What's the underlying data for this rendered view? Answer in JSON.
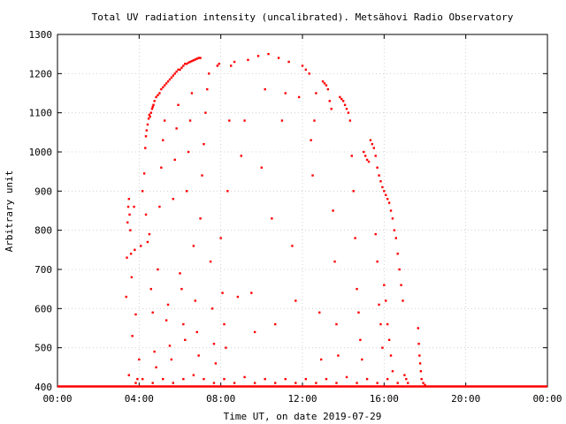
{
  "chart_data": {
    "type": "scatter",
    "title": "Total UV radiation intensity (uncalibrated). Metsähovi Radio Observatory",
    "xlabel": "Time UT, on date 2019-07-29",
    "ylabel": "Arbitrary unit",
    "xlim": [
      "00:00",
      "24:00"
    ],
    "ylim": [
      400,
      1300
    ],
    "x_ticks": [
      "00:00",
      "04:00",
      "08:00",
      "12:00",
      "16:00",
      "20:00",
      "00:00"
    ],
    "y_ticks": [
      400,
      500,
      600,
      700,
      800,
      900,
      1000,
      1100,
      1200,
      1300
    ],
    "grid": true,
    "marker_color": "#ff0000",
    "baseline": 400,
    "series": [
      {
        "points": [
          [
            "03:22",
            630
          ],
          [
            "03:24",
            730
          ],
          [
            "03:26",
            820
          ],
          [
            "03:28",
            860
          ],
          [
            "03:30",
            880
          ],
          [
            "03:32",
            840
          ],
          [
            "03:34",
            800
          ],
          [
            "03:36",
            740
          ],
          [
            "03:38",
            680
          ],
          [
            "03:40",
            530
          ],
          [
            "03:45",
            860
          ],
          [
            "03:47",
            750
          ],
          [
            "03:50",
            585
          ],
          [
            "03:55",
            420
          ],
          [
            "04:00",
            470
          ],
          [
            "04:05",
            760
          ],
          [
            "04:10",
            900
          ],
          [
            "04:15",
            945
          ],
          [
            "04:18",
            1010
          ],
          [
            "04:20",
            1040
          ],
          [
            "04:22",
            1055
          ],
          [
            "04:25",
            1070
          ],
          [
            "04:28",
            1085
          ],
          [
            "04:30",
            1095
          ],
          [
            "04:32",
            1090
          ],
          [
            "04:35",
            1100
          ],
          [
            "04:38",
            1110
          ],
          [
            "04:40",
            1115
          ],
          [
            "04:42",
            1120
          ],
          [
            "04:45",
            1130
          ],
          [
            "04:50",
            1140
          ],
          [
            "04:55",
            1145
          ],
          [
            "05:00",
            1150
          ],
          [
            "05:05",
            1160
          ],
          [
            "05:10",
            1165
          ],
          [
            "05:15",
            1170
          ],
          [
            "05:20",
            1175
          ],
          [
            "05:25",
            1180
          ],
          [
            "05:30",
            1185
          ],
          [
            "05:35",
            1190
          ],
          [
            "05:40",
            1195
          ],
          [
            "05:45",
            1200
          ],
          [
            "05:50",
            1205
          ],
          [
            "05:55",
            1210
          ],
          [
            "06:00",
            1210
          ],
          [
            "06:05",
            1215
          ],
          [
            "06:10",
            1220
          ],
          [
            "06:15",
            1225
          ],
          [
            "06:20",
            1225
          ],
          [
            "06:25",
            1228
          ],
          [
            "06:30",
            1230
          ],
          [
            "06:35",
            1232
          ],
          [
            "06:40",
            1234
          ],
          [
            "06:45",
            1236
          ],
          [
            "06:50",
            1238
          ],
          [
            "06:55",
            1240
          ],
          [
            "07:00",
            1240
          ],
          [
            "04:20",
            840
          ],
          [
            "04:25",
            770
          ],
          [
            "04:30",
            790
          ],
          [
            "04:35",
            650
          ],
          [
            "04:40",
            590
          ],
          [
            "04:45",
            490
          ],
          [
            "04:50",
            450
          ],
          [
            "04:55",
            700
          ],
          [
            "05:00",
            860
          ],
          [
            "05:05",
            960
          ],
          [
            "05:10",
            1030
          ],
          [
            "05:15",
            1080
          ],
          [
            "05:20",
            570
          ],
          [
            "05:25",
            610
          ],
          [
            "05:30",
            505
          ],
          [
            "05:35",
            470
          ],
          [
            "05:40",
            880
          ],
          [
            "05:45",
            980
          ],
          [
            "05:50",
            1060
          ],
          [
            "05:55",
            1120
          ],
          [
            "06:00",
            690
          ],
          [
            "06:05",
            650
          ],
          [
            "06:10",
            560
          ],
          [
            "06:15",
            520
          ],
          [
            "06:20",
            900
          ],
          [
            "06:25",
            1000
          ],
          [
            "06:30",
            1080
          ],
          [
            "06:35",
            1150
          ],
          [
            "06:40",
            760
          ],
          [
            "06:45",
            620
          ],
          [
            "06:50",
            540
          ],
          [
            "06:55",
            480
          ],
          [
            "07:00",
            830
          ],
          [
            "07:05",
            940
          ],
          [
            "07:10",
            1020
          ],
          [
            "07:15",
            1100
          ],
          [
            "07:20",
            1160
          ],
          [
            "07:25",
            1200
          ],
          [
            "07:30",
            720
          ],
          [
            "07:35",
            600
          ],
          [
            "07:40",
            510
          ],
          [
            "07:45",
            460
          ],
          [
            "07:50",
            1220
          ],
          [
            "07:55",
            1225
          ],
          [
            "08:00",
            780
          ],
          [
            "08:05",
            640
          ],
          [
            "08:10",
            560
          ],
          [
            "08:15",
            500
          ],
          [
            "08:20",
            900
          ],
          [
            "08:25",
            1080
          ],
          [
            "08:30",
            1220
          ],
          [
            "08:40",
            1230
          ],
          [
            "08:50",
            630
          ],
          [
            "09:00",
            990
          ],
          [
            "09:10",
            1080
          ],
          [
            "09:20",
            1235
          ],
          [
            "09:30",
            640
          ],
          [
            "09:40",
            540
          ],
          [
            "09:50",
            1245
          ],
          [
            "10:00",
            960
          ],
          [
            "10:10",
            1160
          ],
          [
            "10:20",
            1250
          ],
          [
            "10:30",
            830
          ],
          [
            "10:40",
            560
          ],
          [
            "10:50",
            1240
          ],
          [
            "11:00",
            1080
          ],
          [
            "11:10",
            1150
          ],
          [
            "11:20",
            1230
          ],
          [
            "11:30",
            760
          ],
          [
            "11:40",
            620
          ],
          [
            "11:50",
            1140
          ],
          [
            "12:00",
            1220
          ],
          [
            "12:10",
            1210
          ],
          [
            "12:20",
            1200
          ],
          [
            "12:25",
            1030
          ],
          [
            "12:30",
            940
          ],
          [
            "12:35",
            1080
          ],
          [
            "12:40",
            1150
          ],
          [
            "12:50",
            590
          ],
          [
            "12:55",
            470
          ],
          [
            "13:00",
            1180
          ],
          [
            "13:05",
            1175
          ],
          [
            "13:10",
            1170
          ],
          [
            "13:15",
            1160
          ],
          [
            "13:20",
            1130
          ],
          [
            "13:25",
            1110
          ],
          [
            "13:30",
            850
          ],
          [
            "13:35",
            720
          ],
          [
            "13:40",
            560
          ],
          [
            "13:45",
            480
          ],
          [
            "13:50",
            1140
          ],
          [
            "13:55",
            1135
          ],
          [
            "14:00",
            1130
          ],
          [
            "14:05",
            1120
          ],
          [
            "14:10",
            1110
          ],
          [
            "14:15",
            1100
          ],
          [
            "14:20",
            1080
          ],
          [
            "14:25",
            990
          ],
          [
            "14:30",
            900
          ],
          [
            "14:35",
            780
          ],
          [
            "14:40",
            650
          ],
          [
            "14:45",
            590
          ],
          [
            "14:50",
            520
          ],
          [
            "14:55",
            470
          ],
          [
            "15:00",
            1000
          ],
          [
            "15:05",
            990
          ],
          [
            "15:10",
            980
          ],
          [
            "15:15",
            975
          ],
          [
            "15:20",
            1030
          ],
          [
            "15:25",
            1020
          ],
          [
            "15:30",
            1010
          ],
          [
            "15:35",
            990
          ],
          [
            "15:40",
            960
          ],
          [
            "15:45",
            940
          ],
          [
            "15:50",
            925
          ],
          [
            "15:55",
            910
          ],
          [
            "16:00",
            900
          ],
          [
            "16:05",
            890
          ],
          [
            "16:10",
            880
          ],
          [
            "16:15",
            870
          ],
          [
            "16:20",
            850
          ],
          [
            "16:25",
            830
          ],
          [
            "16:30",
            800
          ],
          [
            "16:35",
            780
          ],
          [
            "16:40",
            740
          ],
          [
            "16:45",
            700
          ],
          [
            "16:50",
            660
          ],
          [
            "16:55",
            620
          ],
          [
            "15:35",
            790
          ],
          [
            "15:40",
            720
          ],
          [
            "15:45",
            610
          ],
          [
            "15:50",
            560
          ],
          [
            "15:55",
            500
          ],
          [
            "16:00",
            660
          ],
          [
            "16:05",
            620
          ],
          [
            "16:10",
            560
          ],
          [
            "16:15",
            520
          ],
          [
            "16:20",
            480
          ],
          [
            "16:25",
            440
          ],
          [
            "17:00",
            430
          ],
          [
            "17:05",
            420
          ],
          [
            "17:10",
            410
          ],
          [
            "17:40",
            550
          ],
          [
            "17:42",
            510
          ],
          [
            "17:44",
            480
          ],
          [
            "17:46",
            460
          ],
          [
            "17:48",
            440
          ],
          [
            "17:50",
            420
          ],
          [
            "17:55",
            410
          ],
          [
            "18:00",
            405
          ],
          [
            "03:30",
            430
          ],
          [
            "03:50",
            410
          ],
          [
            "04:10",
            420
          ],
          [
            "04:40",
            410
          ],
          [
            "05:10",
            420
          ],
          [
            "05:40",
            410
          ],
          [
            "06:10",
            420
          ],
          [
            "06:40",
            430
          ],
          [
            "07:10",
            420
          ],
          [
            "07:40",
            410
          ],
          [
            "08:10",
            420
          ],
          [
            "08:40",
            410
          ],
          [
            "09:10",
            425
          ],
          [
            "09:40",
            410
          ],
          [
            "10:10",
            420
          ],
          [
            "10:40",
            410
          ],
          [
            "11:10",
            420
          ],
          [
            "11:40",
            410
          ],
          [
            "12:10",
            420
          ],
          [
            "12:40",
            410
          ],
          [
            "13:10",
            420
          ],
          [
            "13:40",
            410
          ],
          [
            "14:10",
            425
          ],
          [
            "14:40",
            410
          ],
          [
            "15:10",
            420
          ],
          [
            "15:40",
            410
          ],
          [
            "16:10",
            420
          ],
          [
            "16:40",
            410
          ]
        ]
      }
    ]
  }
}
